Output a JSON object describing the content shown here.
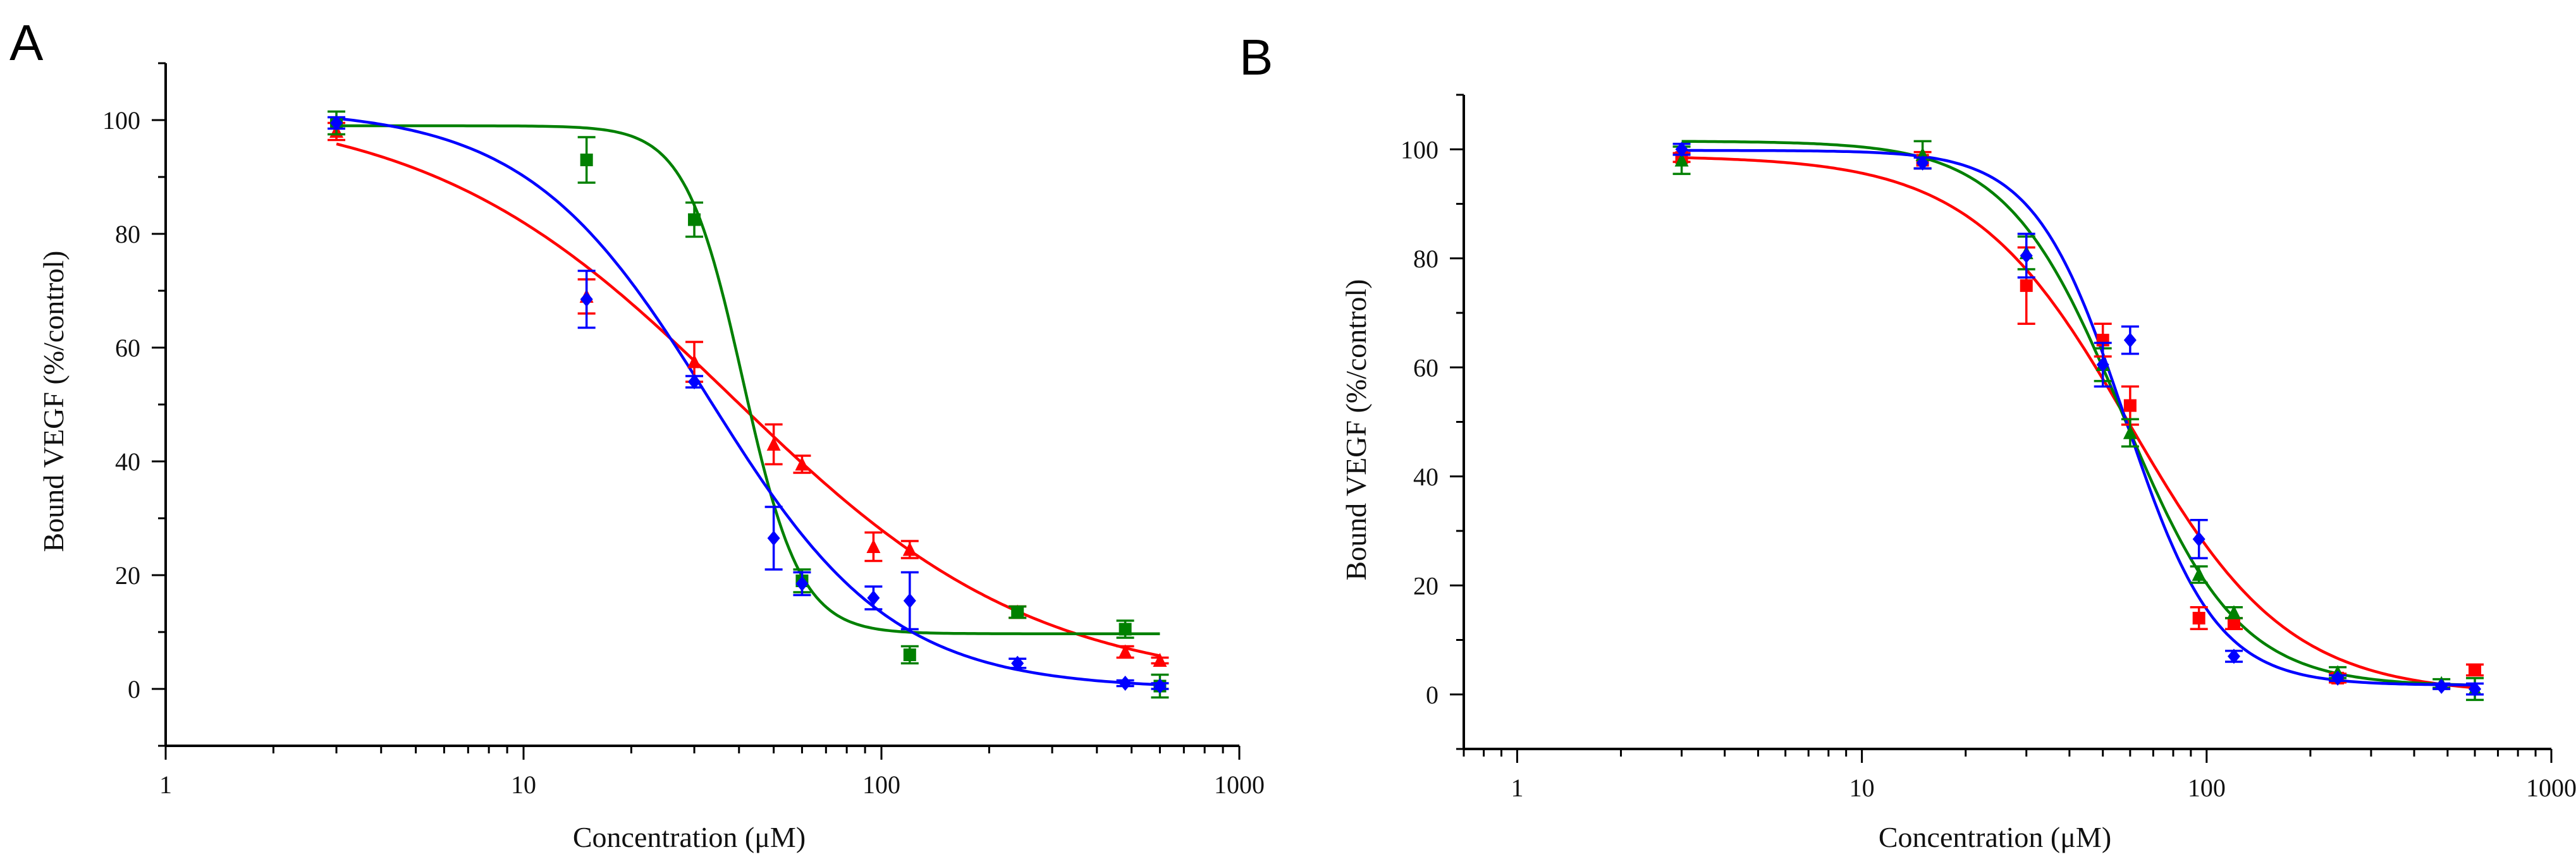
{
  "chart_data": [
    {
      "panel": "A",
      "type": "scatter",
      "xscale": "log",
      "xlabel": "Concentration (μM)",
      "ylabel": "Bound VEGF (%/control)",
      "xlim": [
        1,
        1000
      ],
      "ylim": [
        -10,
        110
      ],
      "xticks": [
        1,
        10,
        100,
        1000
      ],
      "yticks": [
        0,
        20,
        40,
        60,
        80,
        100
      ],
      "grid": false,
      "series": [
        {
          "name": "red",
          "color": "#ff0000",
          "marker": "triangle",
          "x": [
            3,
            15,
            30,
            50,
            60,
            95,
            120,
            240,
            480,
            600
          ],
          "y": [
            98,
            69,
            57.5,
            43,
            39.5,
            25,
            24.5,
            13.5,
            6.5,
            5
          ],
          "err": [
            1.5,
            3,
            3.5,
            3.5,
            1.5,
            2.5,
            1.5,
            1,
            1,
            0.5
          ],
          "fit": {
            "top": 103,
            "bottom": 0,
            "ec50": 38,
            "hill": 1.02
          }
        },
        {
          "name": "green",
          "color": "#008000",
          "marker": "square",
          "x": [
            3,
            15,
            30,
            60,
            120,
            240,
            480,
            600
          ],
          "y": [
            99.5,
            93,
            82.5,
            19,
            6,
            13.5,
            10.5,
            0.5
          ],
          "err": [
            2,
            4,
            3,
            2,
            1.5,
            1,
            1.5,
            2
          ],
          "fit": {
            "top": 99,
            "bottom": 9.7,
            "ec50": 41,
            "hill": 5.4
          }
        },
        {
          "name": "blue",
          "color": "#0000ff",
          "marker": "diamond",
          "x": [
            3,
            15,
            30,
            50,
            60,
            95,
            120,
            240,
            480,
            600
          ],
          "y": [
            99.5,
            68.5,
            54,
            26.5,
            18.5,
            16,
            15.5,
            4.5,
            1,
            0.5
          ],
          "err": [
            1,
            5,
            1,
            5.5,
            2,
            2,
            5,
            0.8,
            0.5,
            0.5
          ],
          "fit": {
            "top": 102,
            "bottom": 0,
            "ec50": 33,
            "hill": 1.7
          }
        }
      ]
    },
    {
      "panel": "B",
      "type": "scatter",
      "xscale": "log",
      "xlabel": "Concentration (μM)",
      "ylabel": "Bound VEGF (%/control)",
      "xlim": [
        0.7,
        1000
      ],
      "ylim": [
        -10,
        110
      ],
      "xticks": [
        1,
        10,
        100,
        1000
      ],
      "yticks": [
        0,
        20,
        40,
        60,
        80,
        100
      ],
      "grid": false,
      "series": [
        {
          "name": "red",
          "color": "#ff0000",
          "marker": "square",
          "x": [
            3,
            15,
            30,
            50,
            60,
            95,
            120,
            240,
            600
          ],
          "y": [
            98.5,
            98,
            75,
            65,
            53,
            14,
            13,
            3,
            4.5
          ],
          "err": [
            0.8,
            1.5,
            7,
            3,
            3.5,
            2,
            1,
            0.8,
            1
          ],
          "fit": {
            "top": 98.8,
            "bottom": 0,
            "ec50": 60,
            "hill": 1.9
          }
        },
        {
          "name": "green",
          "color": "#008000",
          "marker": "triangle",
          "x": [
            3,
            15,
            30,
            50,
            60,
            95,
            120,
            240,
            480,
            600
          ],
          "y": [
            98,
            99,
            81,
            60.5,
            48,
            22,
            15,
            4,
            2,
            1
          ],
          "err": [
            2.5,
            2.5,
            3,
            3,
            2.5,
            1.5,
            1,
            1,
            0.8,
            2
          ],
          "fit": {
            "top": 101.5,
            "bottom": 1.5,
            "ec50": 57,
            "hill": 2.6
          }
        },
        {
          "name": "blue",
          "color": "#0000ff",
          "marker": "diamond",
          "x": [
            3,
            15,
            30,
            50,
            60,
            95,
            120,
            240,
            480,
            600
          ],
          "y": [
            100,
            97.5,
            80.5,
            60.5,
            65,
            28.5,
            7,
            3,
            1.5,
            1
          ],
          "err": [
            1,
            1,
            4,
            4,
            2.5,
            3.5,
            1,
            0.5,
            0.5,
            1
          ],
          "fit": {
            "top": 99.8,
            "bottom": 1.7,
            "ec50": 58,
            "hill": 3.3
          }
        }
      ]
    }
  ]
}
